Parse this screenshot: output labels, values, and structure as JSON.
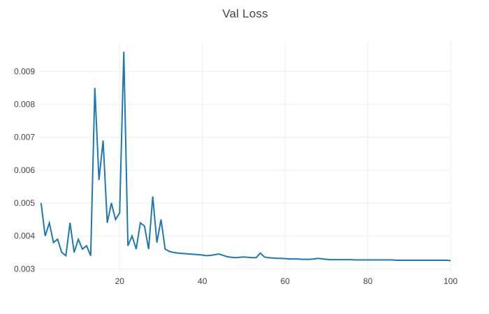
{
  "chart_data": {
    "type": "line",
    "title": "Val Loss",
    "xlabel": "",
    "ylabel": "",
    "xlim": [
      0.7,
      100
    ],
    "ylim": [
      0.0029,
      0.0099
    ],
    "xticks": [
      20,
      40,
      60,
      80,
      100
    ],
    "xtick_labels": [
      "20",
      "40",
      "60",
      "80",
      "100"
    ],
    "yticks": [
      0.003,
      0.004,
      0.005,
      0.006,
      0.007,
      0.008,
      0.009
    ],
    "ytick_labels": [
      "0.003",
      "0.004",
      "0.005",
      "0.006",
      "0.007",
      "0.008",
      "0.009"
    ],
    "grid": true,
    "legend": false,
    "background_color": "#ffffff",
    "grid_color": "#eeeeee",
    "text_color": "#444444",
    "series": [
      {
        "name": "val-loss",
        "color": "#1f77b4",
        "line_width": 2,
        "x_start": 1,
        "x_step": 1,
        "values": [
          0.005,
          0.004,
          0.0044,
          0.0038,
          0.0039,
          0.0035,
          0.0034,
          0.0044,
          0.0035,
          0.0039,
          0.0036,
          0.0037,
          0.0034,
          0.0085,
          0.0057,
          0.0069,
          0.0044,
          0.005,
          0.0045,
          0.0047,
          0.0096,
          0.0037,
          0.004,
          0.0036,
          0.0044,
          0.0043,
          0.0036,
          0.0052,
          0.0038,
          0.0045,
          0.0036,
          0.00353,
          0.0035,
          0.00348,
          0.00347,
          0.00346,
          0.00345,
          0.00344,
          0.00343,
          0.00342,
          0.0034,
          0.00341,
          0.00343,
          0.00345,
          0.00341,
          0.00337,
          0.00335,
          0.00334,
          0.00335,
          0.00336,
          0.00335,
          0.00334,
          0.00334,
          0.00348,
          0.00336,
          0.00334,
          0.00333,
          0.00332,
          0.00332,
          0.00331,
          0.0033,
          0.0033,
          0.0033,
          0.00329,
          0.00329,
          0.00329,
          0.0033,
          0.00332,
          0.0033,
          0.00329,
          0.00328,
          0.00328,
          0.00328,
          0.00328,
          0.00328,
          0.00328,
          0.00327,
          0.00327,
          0.00327,
          0.00327,
          0.00327,
          0.00327,
          0.00327,
          0.00327,
          0.00327,
          0.00327,
          0.00326,
          0.00326,
          0.00326,
          0.00326,
          0.00326,
          0.00326,
          0.00326,
          0.00326,
          0.00326,
          0.00326,
          0.00326,
          0.00326,
          0.00326,
          0.00325
        ]
      }
    ]
  }
}
